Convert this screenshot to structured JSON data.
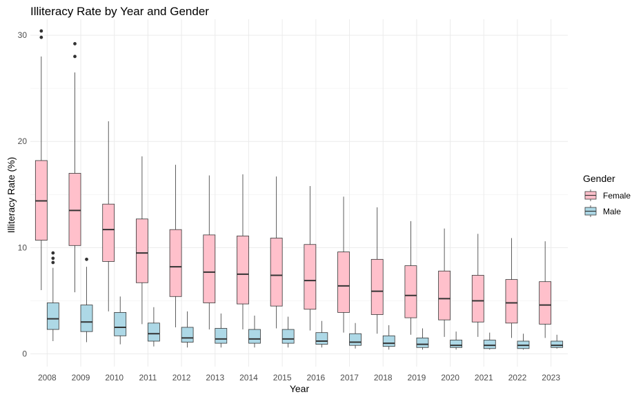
{
  "chart_data": {
    "type": "boxplot",
    "title": "Illiteracy Rate by Year and Gender",
    "xlabel": "Year",
    "ylabel": "Illiteracy Rate (%)",
    "ylim": [
      -1.2,
      31.5
    ],
    "yticks": [
      0,
      10,
      20,
      30
    ],
    "grid": true,
    "legend": {
      "title": "Gender",
      "position": "right"
    },
    "categories": [
      "2008",
      "2009",
      "2010",
      "2011",
      "2012",
      "2013",
      "2014",
      "2015",
      "2016",
      "2017",
      "2018",
      "2019",
      "2020",
      "2021",
      "2022",
      "2023"
    ],
    "series": [
      {
        "name": "Female",
        "color": "#ffc0cb",
        "boxes": [
          {
            "low": 6.0,
            "q1": 10.7,
            "median": 14.4,
            "q3": 18.2,
            "high": 28.0,
            "outliers": [
              29.8,
              30.4
            ]
          },
          {
            "low": 5.8,
            "q1": 10.2,
            "median": 13.5,
            "q3": 17.0,
            "high": 26.5,
            "outliers": [
              28.0,
              29.2
            ]
          },
          {
            "low": 4.0,
            "q1": 8.7,
            "median": 11.7,
            "q3": 14.1,
            "high": 21.9,
            "outliers": []
          },
          {
            "low": 2.8,
            "q1": 6.7,
            "median": 9.5,
            "q3": 12.7,
            "high": 18.6,
            "outliers": []
          },
          {
            "low": 2.5,
            "q1": 5.4,
            "median": 8.2,
            "q3": 11.7,
            "high": 17.8,
            "outliers": []
          },
          {
            "low": 2.3,
            "q1": 4.8,
            "median": 7.7,
            "q3": 11.2,
            "high": 16.8,
            "outliers": []
          },
          {
            "low": 2.3,
            "q1": 4.7,
            "median": 7.5,
            "q3": 11.1,
            "high": 16.9,
            "outliers": []
          },
          {
            "low": 2.4,
            "q1": 4.5,
            "median": 7.4,
            "q3": 10.9,
            "high": 16.7,
            "outliers": []
          },
          {
            "low": 2.2,
            "q1": 4.2,
            "median": 6.9,
            "q3": 10.3,
            "high": 15.8,
            "outliers": []
          },
          {
            "low": 2.0,
            "q1": 3.9,
            "median": 6.4,
            "q3": 9.6,
            "high": 14.8,
            "outliers": []
          },
          {
            "low": 1.9,
            "q1": 3.7,
            "median": 5.9,
            "q3": 8.9,
            "high": 13.8,
            "outliers": []
          },
          {
            "low": 1.8,
            "q1": 3.4,
            "median": 5.5,
            "q3": 8.3,
            "high": 12.5,
            "outliers": []
          },
          {
            "low": 1.6,
            "q1": 3.2,
            "median": 5.2,
            "q3": 7.8,
            "high": 11.8,
            "outliers": []
          },
          {
            "low": 1.6,
            "q1": 3.0,
            "median": 5.0,
            "q3": 7.4,
            "high": 11.3,
            "outliers": []
          },
          {
            "low": 1.5,
            "q1": 2.9,
            "median": 4.8,
            "q3": 7.0,
            "high": 10.9,
            "outliers": []
          },
          {
            "low": 1.5,
            "q1": 2.8,
            "median": 4.6,
            "q3": 6.8,
            "high": 10.6,
            "outliers": []
          }
        ]
      },
      {
        "name": "Male",
        "color": "#add8e6",
        "boxes": [
          {
            "low": 1.2,
            "q1": 2.3,
            "median": 3.3,
            "q3": 4.8,
            "high": 8.1,
            "outliers": [
              8.6,
              9.0,
              9.5
            ]
          },
          {
            "low": 1.1,
            "q1": 2.1,
            "median": 3.0,
            "q3": 4.6,
            "high": 8.2,
            "outliers": [
              8.9
            ]
          },
          {
            "low": 0.9,
            "q1": 1.7,
            "median": 2.5,
            "q3": 3.9,
            "high": 5.4,
            "outliers": []
          },
          {
            "low": 0.7,
            "q1": 1.2,
            "median": 1.9,
            "q3": 2.9,
            "high": 4.4,
            "outliers": []
          },
          {
            "low": 0.6,
            "q1": 1.1,
            "median": 1.5,
            "q3": 2.5,
            "high": 4.0,
            "outliers": []
          },
          {
            "low": 0.6,
            "q1": 1.0,
            "median": 1.4,
            "q3": 2.4,
            "high": 3.8,
            "outliers": []
          },
          {
            "low": 0.6,
            "q1": 1.0,
            "median": 1.4,
            "q3": 2.3,
            "high": 3.6,
            "outliers": []
          },
          {
            "low": 0.6,
            "q1": 1.0,
            "median": 1.4,
            "q3": 2.3,
            "high": 3.5,
            "outliers": []
          },
          {
            "low": 0.6,
            "q1": 0.9,
            "median": 1.2,
            "q3": 2.0,
            "high": 3.1,
            "outliers": []
          },
          {
            "low": 0.5,
            "q1": 0.8,
            "median": 1.1,
            "q3": 1.9,
            "high": 2.9,
            "outliers": []
          },
          {
            "low": 0.4,
            "q1": 0.7,
            "median": 1.0,
            "q3": 1.7,
            "high": 2.7,
            "outliers": []
          },
          {
            "low": 0.4,
            "q1": 0.6,
            "median": 0.9,
            "q3": 1.5,
            "high": 2.4,
            "outliers": []
          },
          {
            "low": 0.4,
            "q1": 0.6,
            "median": 0.8,
            "q3": 1.3,
            "high": 2.1,
            "outliers": []
          },
          {
            "low": 0.4,
            "q1": 0.5,
            "median": 0.8,
            "q3": 1.3,
            "high": 2.0,
            "outliers": []
          },
          {
            "low": 0.4,
            "q1": 0.5,
            "median": 0.8,
            "q3": 1.2,
            "high": 1.9,
            "outliers": []
          },
          {
            "low": 0.5,
            "q1": 0.6,
            "median": 0.8,
            "q3": 1.2,
            "high": 1.8,
            "outliers": []
          }
        ]
      }
    ]
  }
}
